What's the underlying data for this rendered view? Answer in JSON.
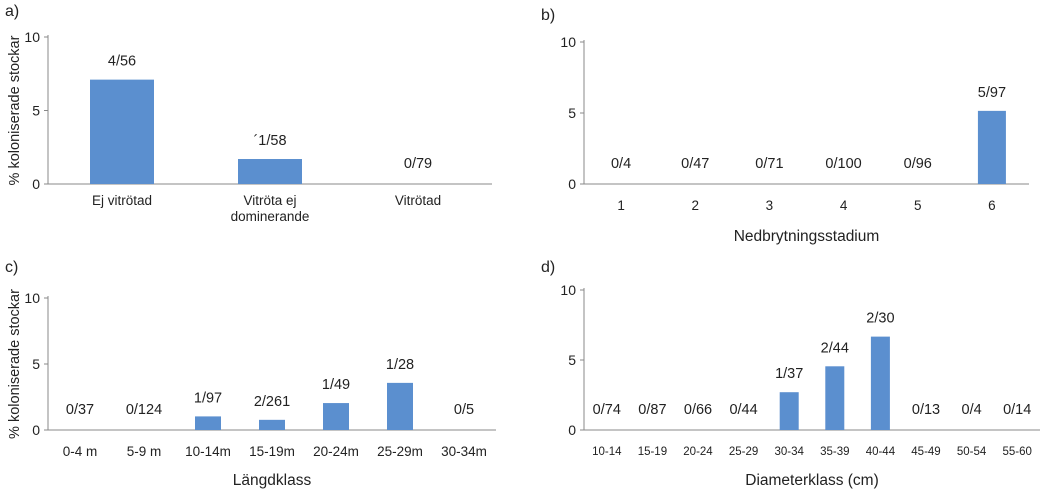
{
  "y_axis_label": "% koloniserade stockar",
  "chart_data": [
    {
      "panel": "a)",
      "type": "bar",
      "categories": [
        [
          "Ej vitrötad"
        ],
        [
          "Vitröta ej",
          "dominerande"
        ],
        [
          "Vitrötad"
        ]
      ],
      "values": [
        7.1,
        1.7,
        0
      ],
      "data_labels": [
        "4/56",
        "´1/58",
        "0/79"
      ],
      "xlabel": "",
      "ylabel": "% koloniserade stockar",
      "ylim": [
        0,
        10
      ],
      "yticks": [
        0,
        5,
        10
      ],
      "color": "#5b8fcf"
    },
    {
      "panel": "b)",
      "type": "bar",
      "categories": [
        [
          "1"
        ],
        [
          "2"
        ],
        [
          "3"
        ],
        [
          "4"
        ],
        [
          "5"
        ],
        [
          "6"
        ]
      ],
      "values": [
        0,
        0,
        0,
        0,
        0,
        5.15
      ],
      "data_labels": [
        "0/4",
        "0/47",
        "0/71",
        "0/100",
        "0/96",
        "5/97"
      ],
      "xlabel": "Nedbrytningsstadium",
      "ylabel": "",
      "ylim": [
        0,
        10
      ],
      "yticks": [
        0,
        5,
        10
      ],
      "color": "#5b8fcf"
    },
    {
      "panel": "c)",
      "type": "bar",
      "categories": [
        [
          "0-4 m"
        ],
        [
          "5-9 m"
        ],
        [
          "10-14m"
        ],
        [
          "15-19m"
        ],
        [
          "20-24m"
        ],
        [
          "25-29m"
        ],
        [
          "30-34m"
        ]
      ],
      "values": [
        0,
        0,
        1.03,
        0.77,
        2.04,
        3.57,
        0
      ],
      "data_labels": [
        "0/37",
        "0/124",
        "1/97",
        "2/261",
        "1/49",
        "1/28",
        "0/5"
      ],
      "xlabel": "Längdklass",
      "ylabel": "% koloniserade stockar",
      "ylim": [
        0,
        10
      ],
      "yticks": [
        0,
        5,
        10
      ],
      "color": "#5b8fcf"
    },
    {
      "panel": "d)",
      "type": "bar",
      "categories": [
        [
          "10-14"
        ],
        [
          "15-19"
        ],
        [
          "20-24"
        ],
        [
          "25-29"
        ],
        [
          "30-34"
        ],
        [
          "35-39"
        ],
        [
          "40-44"
        ],
        [
          "45-49"
        ],
        [
          "50-54"
        ],
        [
          "55-60"
        ]
      ],
      "values": [
        0,
        0,
        0,
        0,
        2.7,
        4.55,
        6.67,
        0,
        0,
        0
      ],
      "data_labels": [
        "0/74",
        "0/87",
        "0/66",
        "0/44",
        "1/37",
        "2/44",
        "2/30",
        "0/13",
        "0/4",
        "0/14"
      ],
      "xlabel": "Diameterklass (cm)",
      "ylabel": "",
      "ylim": [
        0,
        10
      ],
      "yticks": [
        0,
        5,
        10
      ],
      "color": "#5b8fcf"
    }
  ]
}
